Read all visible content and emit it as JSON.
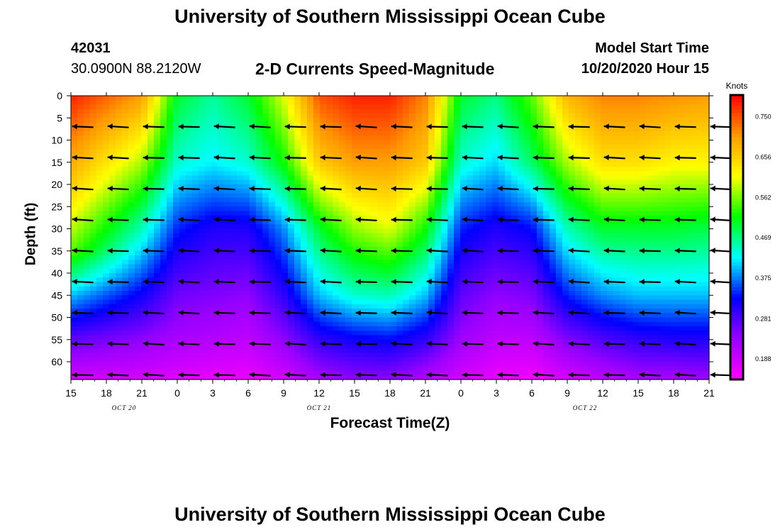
{
  "title": "University of Southern Mississippi Ocean Cube",
  "footer_title": "University of Southern Mississippi Ocean Cube",
  "station_id": "42031",
  "location": "30.0900N 88.2120W",
  "model_label": "Model Start Time",
  "model_time": "10/20/2020 Hour 15",
  "chart_data": {
    "type": "heatmap",
    "title": "2-D Currents Speed-Magnitude",
    "xlabel": "Forecast Time(Z)",
    "ylabel": "Depth (ft)",
    "x_range_hours": [
      0,
      54
    ],
    "ylim": [
      0,
      64
    ],
    "x_tick_labels": [
      "15",
      "18",
      "21",
      "0",
      "3",
      "6",
      "9",
      "12",
      "15",
      "18",
      "21",
      "0",
      "3",
      "6",
      "9",
      "12",
      "15",
      "18",
      "21"
    ],
    "y_ticks": [
      0,
      5,
      10,
      15,
      20,
      25,
      30,
      35,
      40,
      45,
      50,
      55,
      60
    ],
    "date_labels": [
      {
        "text": "OCT 20",
        "hour": 4.5
      },
      {
        "text": "OCT 21",
        "hour": 21
      },
      {
        "text": "OCT 22",
        "hour": 43.5
      }
    ],
    "colorbar": {
      "units": "Knots",
      "min": 0.14,
      "max": 0.8,
      "tick_labels": [
        "0.750",
        "0.656",
        "0.562",
        "0.469",
        "0.375",
        "0.281",
        "0.188"
      ],
      "tick_values": [
        0.75,
        0.656,
        0.562,
        0.469,
        0.375,
        0.281,
        0.188
      ],
      "colors": [
        "#ff00ff",
        "#9900ff",
        "#0000ff",
        "#00ffff",
        "#00ff00",
        "#ffff00",
        "#ff9900",
        "#ff0000"
      ]
    },
    "speed_profiles": [
      {
        "hour": 0,
        "depth": [
          0,
          20,
          35,
          45,
          55,
          64
        ],
        "speed": [
          0.78,
          0.66,
          0.55,
          0.4,
          0.27,
          0.18
        ]
      },
      {
        "hour": 6,
        "depth": [
          0,
          15,
          30,
          45,
          55,
          64
        ],
        "speed": [
          0.7,
          0.58,
          0.45,
          0.32,
          0.24,
          0.18
        ]
      },
      {
        "hour": 9,
        "depth": [
          0,
          15,
          30,
          45,
          55,
          64
        ],
        "speed": [
          0.5,
          0.44,
          0.34,
          0.26,
          0.22,
          0.17
        ]
      },
      {
        "hour": 12,
        "depth": [
          0,
          15,
          30,
          45,
          55,
          64
        ],
        "speed": [
          0.46,
          0.42,
          0.31,
          0.25,
          0.21,
          0.16
        ]
      },
      {
        "hour": 15,
        "depth": [
          0,
          15,
          30,
          45,
          55,
          64
        ],
        "speed": [
          0.5,
          0.44,
          0.31,
          0.24,
          0.2,
          0.16
        ]
      },
      {
        "hour": 18,
        "depth": [
          0,
          15,
          30,
          45,
          55,
          64
        ],
        "speed": [
          0.6,
          0.52,
          0.38,
          0.3,
          0.24,
          0.18
        ]
      },
      {
        "hour": 21,
        "depth": [
          0,
          15,
          30,
          45,
          55,
          64
        ],
        "speed": [
          0.75,
          0.66,
          0.5,
          0.4,
          0.3,
          0.22
        ]
      },
      {
        "hour": 24,
        "depth": [
          0,
          15,
          30,
          45,
          55,
          64
        ],
        "speed": [
          0.78,
          0.7,
          0.57,
          0.44,
          0.32,
          0.24
        ]
      },
      {
        "hour": 27,
        "depth": [
          0,
          15,
          30,
          45,
          55,
          64
        ],
        "speed": [
          0.78,
          0.7,
          0.6,
          0.45,
          0.33,
          0.24
        ]
      },
      {
        "hour": 30,
        "depth": [
          0,
          15,
          30,
          45,
          55,
          64
        ],
        "speed": [
          0.72,
          0.66,
          0.52,
          0.4,
          0.3,
          0.21
        ]
      },
      {
        "hour": 33,
        "depth": [
          0,
          15,
          30,
          45,
          55,
          64
        ],
        "speed": [
          0.5,
          0.44,
          0.34,
          0.27,
          0.23,
          0.18
        ]
      },
      {
        "hour": 36,
        "depth": [
          0,
          15,
          30,
          45,
          55,
          64
        ],
        "speed": [
          0.47,
          0.41,
          0.31,
          0.24,
          0.2,
          0.16
        ]
      },
      {
        "hour": 39,
        "depth": [
          0,
          15,
          30,
          45,
          55,
          64
        ],
        "speed": [
          0.55,
          0.48,
          0.33,
          0.25,
          0.2,
          0.15
        ]
      },
      {
        "hour": 42,
        "depth": [
          0,
          15,
          30,
          45,
          55,
          64
        ],
        "speed": [
          0.68,
          0.58,
          0.45,
          0.34,
          0.25,
          0.18
        ]
      },
      {
        "hour": 45,
        "depth": [
          0,
          15,
          30,
          45,
          55,
          64
        ],
        "speed": [
          0.72,
          0.64,
          0.5,
          0.38,
          0.28,
          0.2
        ]
      },
      {
        "hour": 48,
        "depth": [
          0,
          15,
          30,
          45,
          55,
          64
        ],
        "speed": [
          0.72,
          0.64,
          0.5,
          0.4,
          0.3,
          0.22
        ]
      },
      {
        "hour": 51,
        "depth": [
          0,
          15,
          30,
          45,
          55,
          64
        ],
        "speed": [
          0.71,
          0.62,
          0.5,
          0.4,
          0.31,
          0.22
        ]
      },
      {
        "hour": 54,
        "depth": [
          0,
          15,
          30,
          45,
          55,
          64
        ],
        "speed": [
          0.7,
          0.62,
          0.49,
          0.4,
          0.31,
          0.23
        ]
      }
    ],
    "vectors": {
      "hours": [
        1,
        4,
        7,
        10,
        13,
        16,
        19,
        22,
        25,
        28,
        31,
        34,
        37,
        40,
        43,
        46,
        49,
        52,
        55
      ],
      "depths": [
        7,
        14,
        21,
        28,
        35,
        42,
        49,
        56,
        63
      ],
      "direction": "westward"
    }
  }
}
